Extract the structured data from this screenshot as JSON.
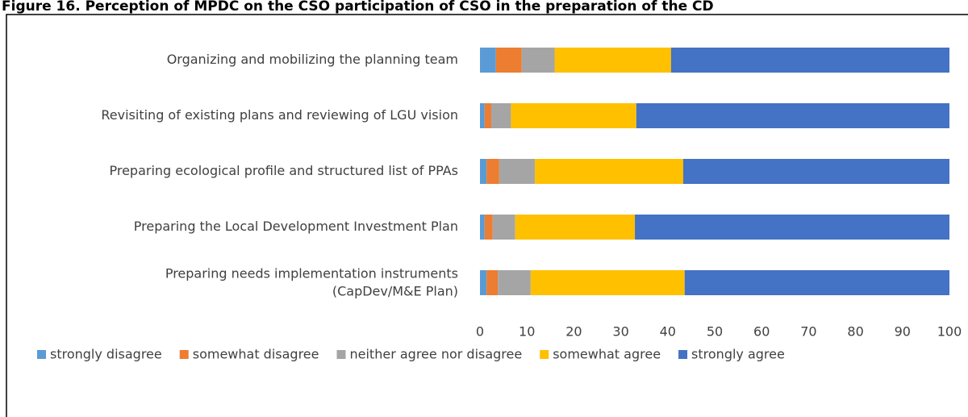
{
  "chart_data": {
    "type": "stacked_bar_horizontal",
    "title": "Figure 16. Perception of MPDC on the CSO participation of CSO in the preparation of the CD",
    "categories": [
      "Organizing and mobilizing the planning team",
      "Revisiting of existing plans and reviewing of LGU vision",
      "Preparing ecological profile and structured list of PPAs",
      "Preparing the Local Development Investment Plan",
      "Preparing needs implementation instruments\n(CapDev/M&E Plan)"
    ],
    "series": [
      {
        "name": "strongly disagree",
        "color": "#5b9bd5",
        "values": [
          3.4,
          1,
          1.4,
          1,
          1.4
        ]
      },
      {
        "name": "somewhat disagree",
        "color": "#ed7d31",
        "values": [
          5.5,
          1.4,
          2.7,
          1.7,
          2.4
        ]
      },
      {
        "name": "neither agree nor disagree",
        "color": "#a5a5a5",
        "values": [
          7,
          4.2,
          7.6,
          4.8,
          7
        ]
      },
      {
        "name": "somewhat agree",
        "color": "#ffc000",
        "values": [
          24.8,
          26.7,
          31.6,
          25.5,
          32.8
        ]
      },
      {
        "name": "strongly agree",
        "color": "#4472c4",
        "values": [
          59.3,
          66.7,
          56.7,
          67,
          56.4
        ]
      }
    ],
    "xlim": [
      0,
      100
    ],
    "xticks": [
      0,
      10,
      20,
      30,
      40,
      50,
      60,
      70,
      80,
      90,
      100
    ],
    "legend": "bottom"
  }
}
